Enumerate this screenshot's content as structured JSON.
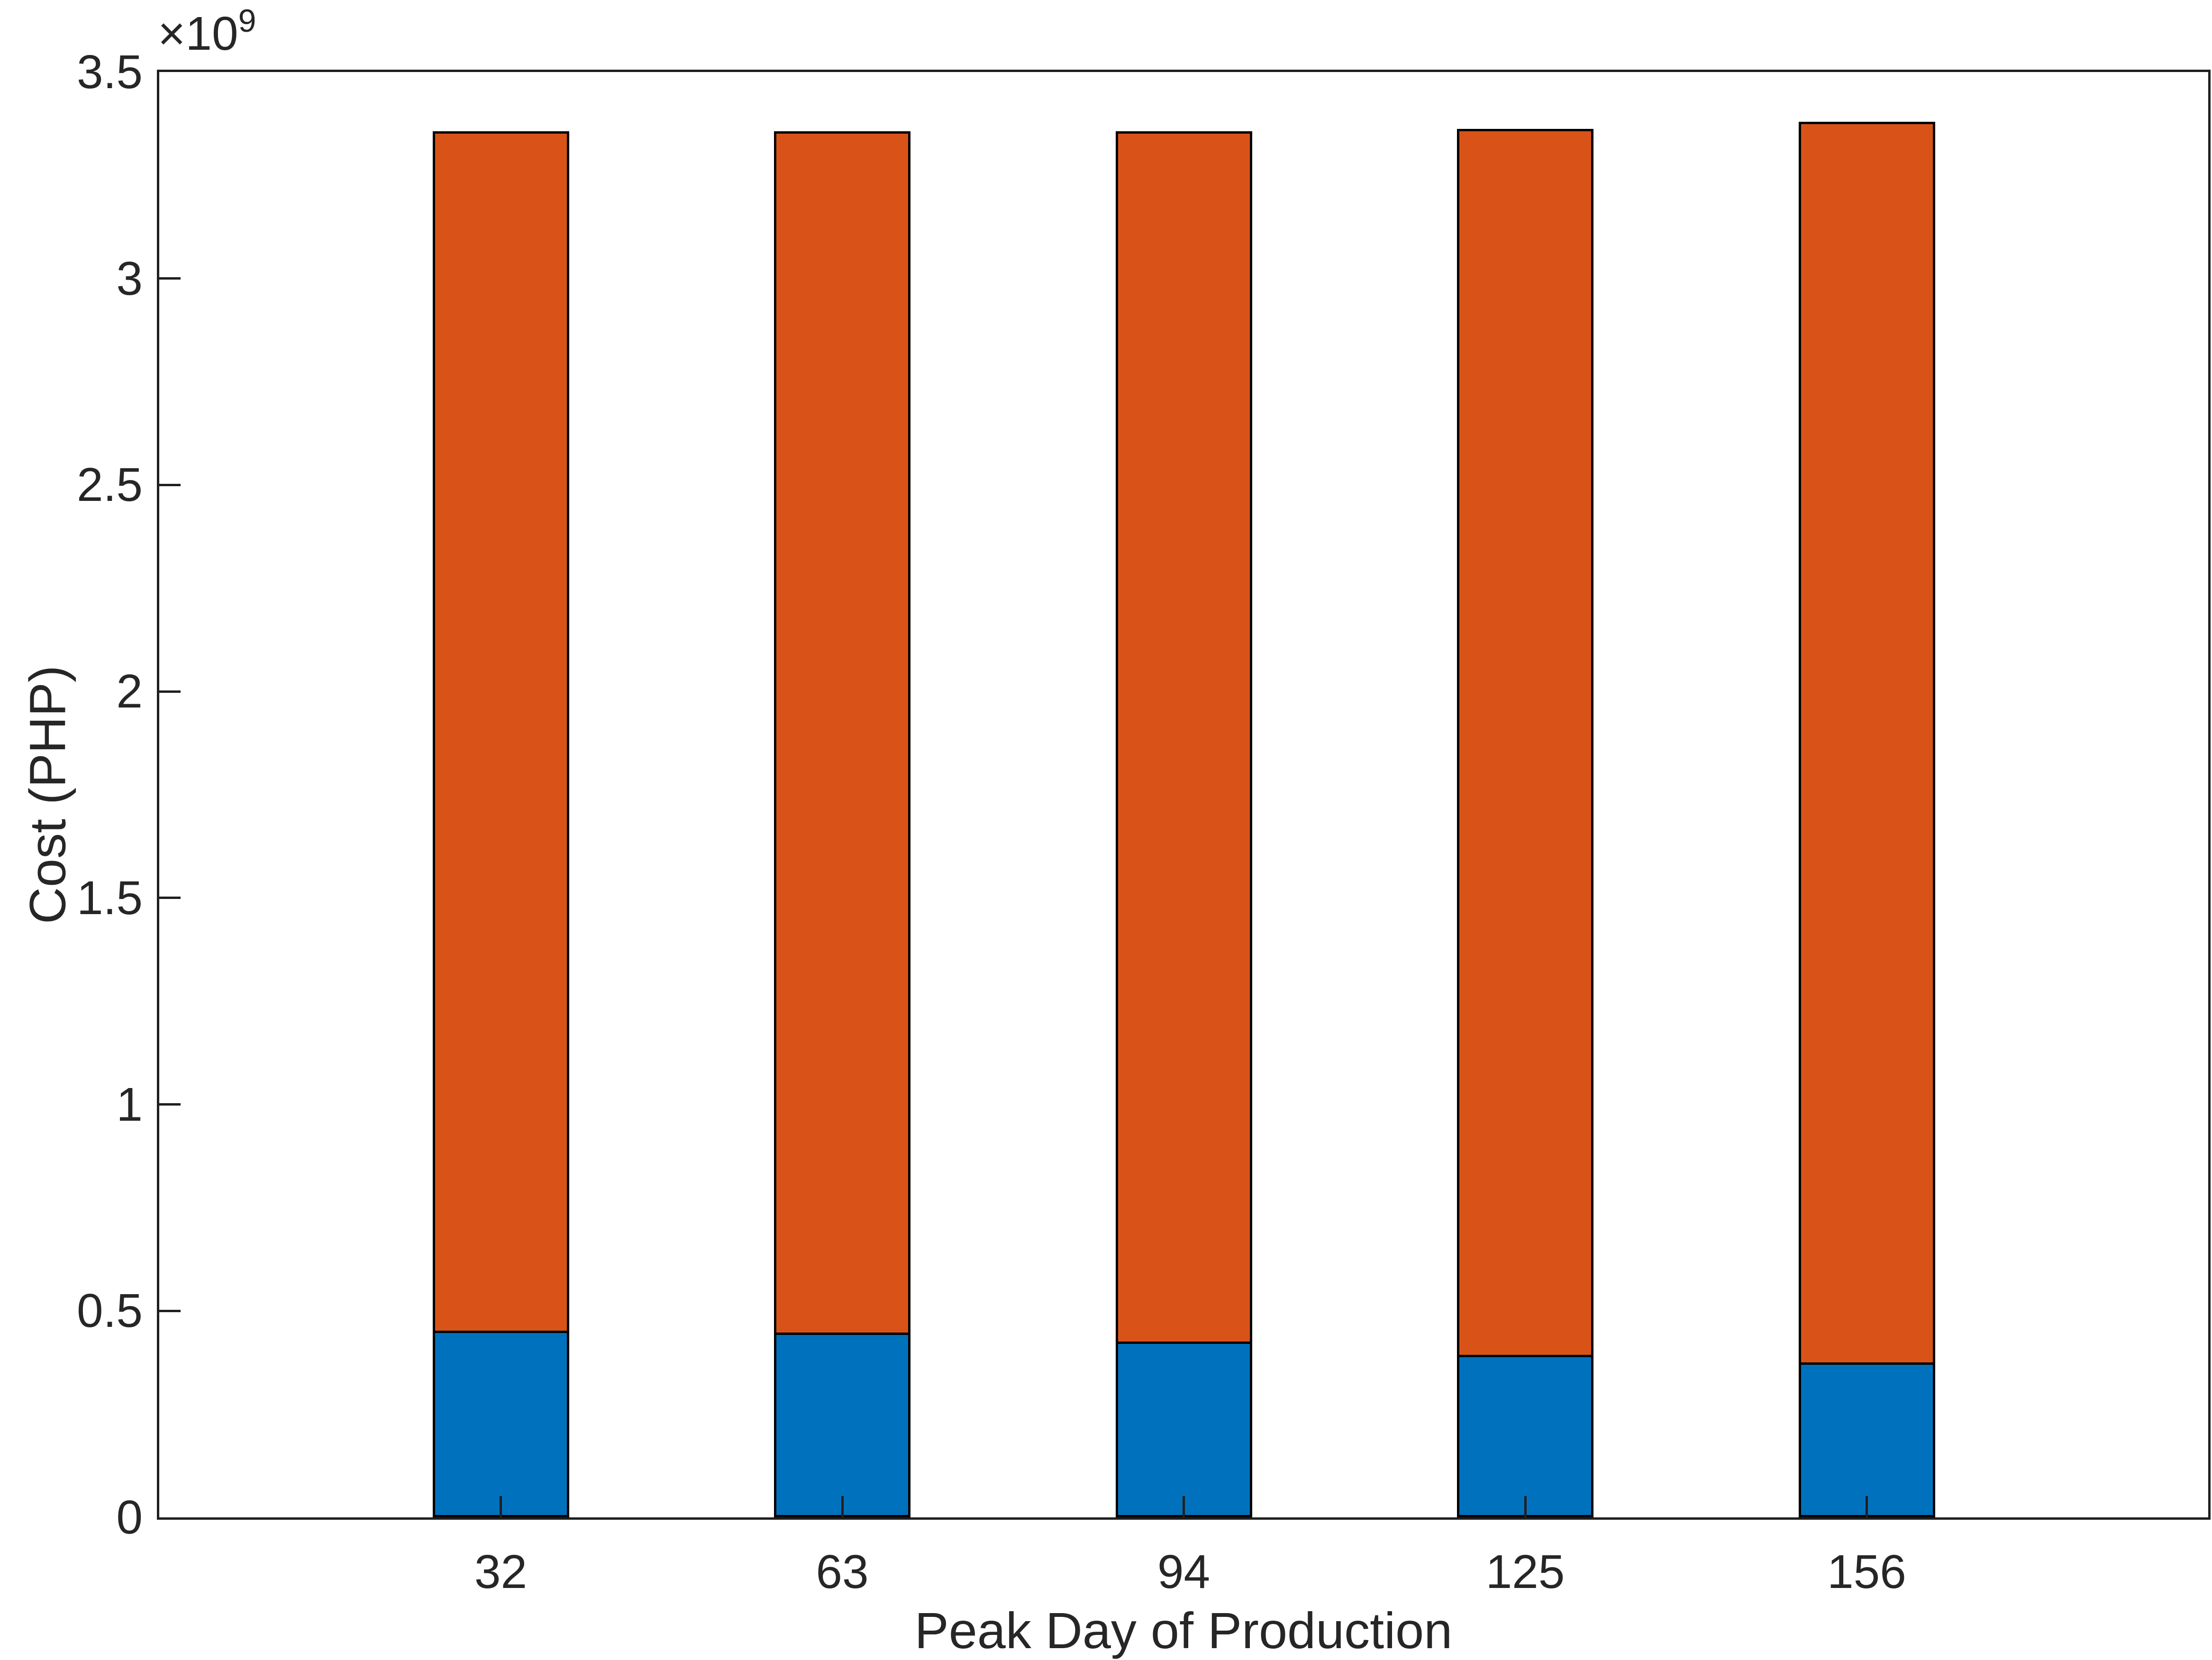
{
  "figure": {
    "background": "#ffffff",
    "axis_color": "#1f1f1f",
    "text_color": "#262626"
  },
  "chart_data": {
    "type": "bar",
    "stacked": true,
    "orientation": "vertical",
    "title": "",
    "xlabel": "Peak Day of Production",
    "ylabel": "Cost (PHP)",
    "categories": [
      "32",
      "63",
      "94",
      "125",
      "156"
    ],
    "series": [
      {
        "name": "blue",
        "color": "#0072BD",
        "values": [
          452000000,
          447000000,
          426000000,
          394000000,
          375000000
        ]
      },
      {
        "name": "orange",
        "color": "#D95319",
        "values": [
          2905000000,
          2909000000,
          2931000000,
          2968000000,
          3004000000
        ]
      }
    ],
    "totals": [
      3357000000,
      3356000000,
      3357000000,
      3362000000,
      3379000000
    ],
    "bar_edge_color": "#000000",
    "bar_relative_width": 0.4,
    "ylim": [
      0,
      3500000000
    ],
    "yticks": {
      "values": [
        0,
        500000000,
        1000000000,
        1500000000,
        2000000000,
        2500000000,
        3000000000,
        3500000000
      ],
      "labels": [
        "0",
        "0.5",
        "1",
        "1.5",
        "2",
        "2.5",
        "3",
        "3.5"
      ],
      "exponent_base": "×10",
      "exponent_power": "9"
    },
    "grid": false,
    "legend": null,
    "tick_direction": "in"
  }
}
